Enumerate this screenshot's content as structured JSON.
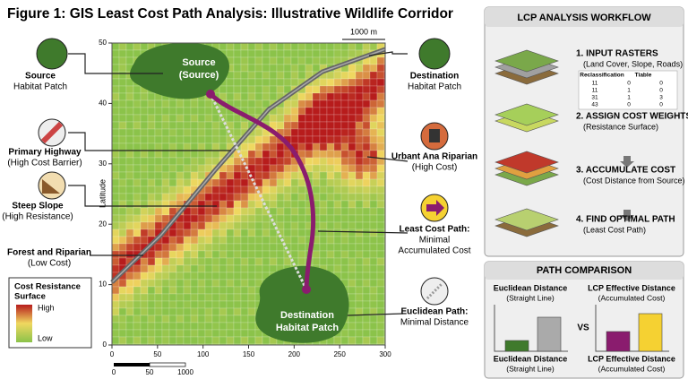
{
  "header": {
    "title": "Figure 1: GIS Least Cost Path Analysis: Illustrative Wildlife Corridor"
  },
  "map": {
    "xlim": [
      0,
      300
    ],
    "ylim": [
      0,
      50
    ],
    "xticks": [
      0,
      50,
      100,
      150,
      200,
      250,
      300
    ],
    "yticks": [
      0,
      10,
      20,
      30,
      40,
      50
    ],
    "y_label": "Latitude",
    "scale_bar_top": "1000 m",
    "scale_bar_bottom": [
      "0",
      "50",
      "1000"
    ],
    "source_label": [
      "Source",
      "(Source)"
    ],
    "destination_label": [
      "Destination",
      "Habitat Patch"
    ]
  },
  "callouts": {
    "source": [
      "Source",
      "Habitat Patch"
    ],
    "highway": [
      "Primary Highway",
      "(High Cost Barrier)"
    ],
    "slope": [
      "Steep Slope",
      "(High Resistance)"
    ],
    "forest": [
      "Forest and Riparian",
      "(Low Cost)"
    ],
    "destination": [
      "Destination",
      "Habitat Patch"
    ],
    "urban": [
      "Urbant Ana Riparian",
      "(High Cost)"
    ],
    "lcp": [
      "Least Cost Path:",
      "Minimal",
      "Accumulated Cost"
    ],
    "euclid": [
      "Euclidean Path:",
      "Minimal Distance"
    ]
  },
  "legend": {
    "title": [
      "Cost Resistance",
      "Surface"
    ],
    "high": "High",
    "low": "Low"
  },
  "workflow": {
    "title": "LCP ANALYSIS WORKFLOW",
    "steps": [
      [
        "1. INPUT RASTERS",
        "(Land Cover, Slope, Roads)"
      ],
      [
        "2. ASSIGN COST WEIGHTS",
        "(Resistance Surface)"
      ],
      [
        "3. ACCUMULATE COST",
        "(Cost Distance from Source)"
      ],
      [
        "4. FIND OPTIMAL PATH",
        "(Least Cost Path)"
      ]
    ],
    "table": {
      "header": [
        "Reclassification",
        "Tiable"
      ],
      "rows": [
        [
          "11",
          "0",
          "0"
        ],
        [
          "11",
          "1",
          "0"
        ],
        [
          "31",
          "1",
          "3"
        ],
        [
          "43",
          "0",
          "0"
        ]
      ]
    }
  },
  "comparison": {
    "title": "PATH COMPARISON",
    "vs": "VS",
    "left": {
      "top": [
        "Euclidean Distance",
        "(Straight Line)"
      ],
      "bottom": [
        "Euclidean Distance",
        "(Straight Line)"
      ],
      "values": [
        12,
        38
      ],
      "colors": [
        "#3f7a2c",
        "#aaaaaa"
      ]
    },
    "right": {
      "top": [
        "LCP Effective Distance",
        "(Accumulated Cost)"
      ],
      "bottom": [
        "LCP Effective Distance",
        "(Accumulated Cost)"
      ],
      "values": [
        22,
        42
      ],
      "colors": [
        "#8a1c6e",
        "#f5d132"
      ]
    }
  }
}
